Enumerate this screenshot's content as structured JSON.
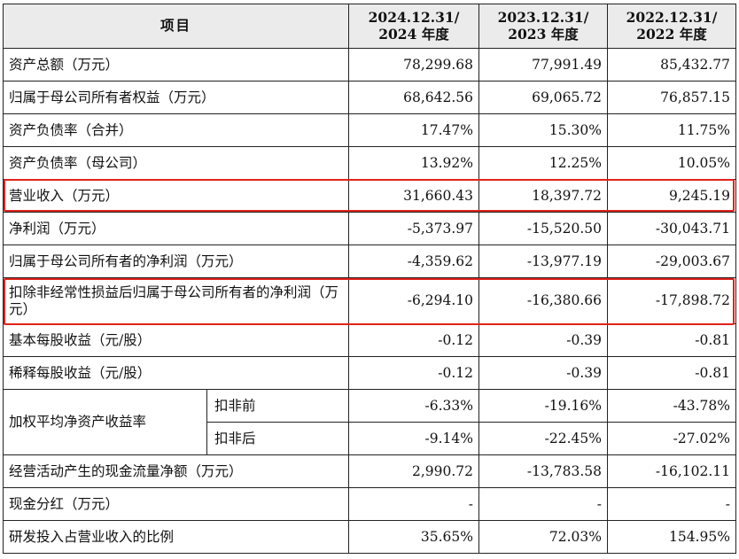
{
  "table": {
    "header": {
      "item": "项目",
      "columns": [
        "2024.12.31/\n2024 年度",
        "2023.12.31/\n2023 年度",
        "2022.12.31/\n2022 年度"
      ]
    },
    "rows": [
      {
        "label": "资产总额（万元）",
        "values": [
          "78,299.68",
          "77,991.49",
          "85,432.77"
        ]
      },
      {
        "label": "归属于母公司所有者权益（万元）",
        "values": [
          "68,642.56",
          "69,065.72",
          "76,857.15"
        ]
      },
      {
        "label": "资产负债率（合并）",
        "values": [
          "17.47%",
          "15.30%",
          "11.75%"
        ]
      },
      {
        "label": "资产负债率（母公司）",
        "values": [
          "13.92%",
          "12.25%",
          "10.05%"
        ]
      },
      {
        "label": "营业收入（万元）",
        "values": [
          "31,660.43",
          "18,397.72",
          "9,245.19"
        ],
        "highlight": true
      },
      {
        "label": "净利润（万元）",
        "values": [
          "-5,373.97",
          "-15,520.50",
          "-30,043.71"
        ]
      },
      {
        "label": "归属于母公司所有者的净利润（万元）",
        "values": [
          "-4,359.62",
          "-13,977.19",
          "-29,003.67"
        ]
      },
      {
        "label": "扣除非经常性损益后归属于母公司所有者的净利润（万元）",
        "values": [
          "-6,294.10",
          "-16,380.66",
          "-17,898.72"
        ],
        "highlight": true
      },
      {
        "label": "基本每股收益（元/股）",
        "values": [
          "-0.12",
          "-0.39",
          "-0.81"
        ]
      },
      {
        "label": "稀释每股收益（元/股）",
        "values": [
          "-0.12",
          "-0.39",
          "-0.81"
        ]
      },
      {
        "label": "加权平均净资产收益率",
        "sub": "扣非前",
        "values": [
          "-6.33%",
          "-19.16%",
          "-43.78%"
        ]
      },
      {
        "sub": "扣非后",
        "values": [
          "-9.14%",
          "-22.45%",
          "-27.02%"
        ]
      },
      {
        "label": "经营活动产生的现金流量净额（万元）",
        "values": [
          "2,990.72",
          "-13,783.58",
          "-16,102.11"
        ]
      },
      {
        "label": "现金分红（万元）",
        "values": [
          "-",
          "-",
          "-"
        ]
      },
      {
        "label": "研发投入占营业收入的比例",
        "values": [
          "35.65%",
          "72.03%",
          "154.95%"
        ]
      }
    ],
    "highlight_color": "#e0231b"
  }
}
